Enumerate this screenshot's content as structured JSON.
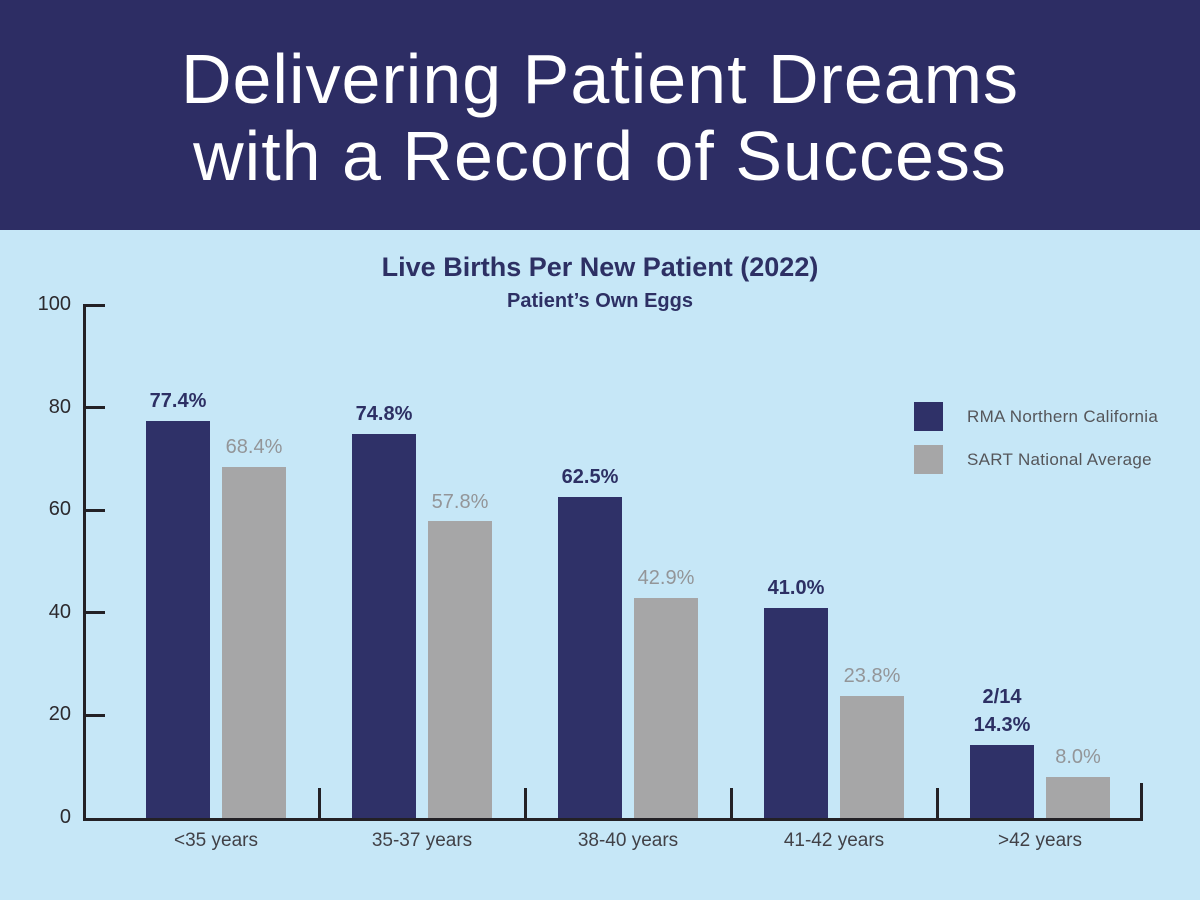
{
  "header": {
    "line1": "Delivering Patient Dreams",
    "line2": "with a Record of Success"
  },
  "colors": {
    "header_background": "#2d2d64",
    "page_background": "#c6e7f7",
    "rma_navy": "#2f3168",
    "sart_gray": "#a6a6a7",
    "title_navy": "#2d3064",
    "axis": "#232126",
    "gray_label": "#939598"
  },
  "chart_data": {
    "type": "bar",
    "title": "Live Births Per New Patient (2022)",
    "subtitle": "Patient’s Own Eggs",
    "categories": [
      "<35 years",
      "35-37 years",
      "38-40 years",
      "41-42 years",
      ">42 years"
    ],
    "series": [
      {
        "name": "RMA Northern California",
        "color": "#2f3168",
        "values": [
          77.4,
          74.8,
          62.5,
          41.0,
          14.3
        ],
        "labels": [
          "77.4%",
          "74.8%",
          "62.5%",
          "41.0%",
          "14.3%"
        ],
        "extra_labels": [
          null,
          null,
          null,
          null,
          "2/14"
        ]
      },
      {
        "name": "SART National Average",
        "color": "#a6a6a7",
        "values": [
          68.4,
          57.8,
          42.9,
          23.8,
          8.0
        ],
        "labels": [
          "68.4%",
          "57.8%",
          "42.9%",
          "23.8%",
          "8.0%"
        ],
        "extra_labels": [
          null,
          null,
          null,
          null,
          null
        ]
      }
    ],
    "y_ticks": [
      0,
      20,
      40,
      60,
      80,
      100
    ],
    "ylim": [
      0,
      100
    ],
    "xlabel": "",
    "ylabel": "",
    "grid": false,
    "legend_position": "upper right"
  }
}
